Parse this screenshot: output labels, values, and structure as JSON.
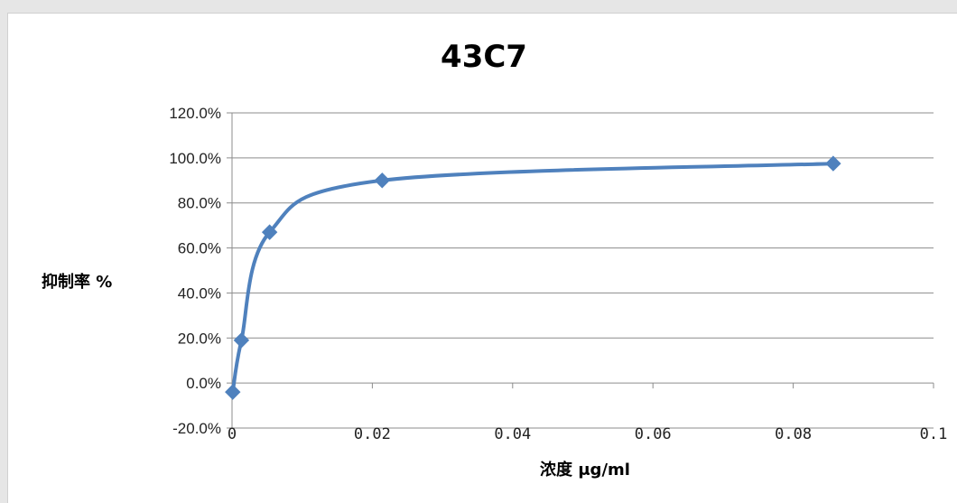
{
  "chart_data": {
    "type": "line",
    "title": "43C7",
    "xlabel": "浓度 μg/ml",
    "ylabel": "抑制率 %",
    "xlim": [
      0,
      0.1
    ],
    "ylim": [
      -0.2,
      1.2
    ],
    "x_ticks": [
      0,
      0.02,
      0.04,
      0.06,
      0.08,
      0.1
    ],
    "x_tick_labels": [
      "0",
      "0.02",
      "0.04",
      "0.06",
      "0.08",
      "0.1"
    ],
    "y_ticks": [
      -0.2,
      0,
      0.2,
      0.4,
      0.6,
      0.8,
      1.0,
      1.2
    ],
    "y_tick_labels": [
      "-20.0%",
      "0.0%",
      "20.0%",
      "40.0%",
      "60.0%",
      "80.0%",
      "100.0%",
      "120.0%"
    ],
    "grid": true,
    "smooth": true,
    "marker": "diamond",
    "color": "#4f81bd",
    "series": [
      {
        "x": [
          0.0001,
          0.00134,
          0.00536,
          0.0214,
          0.0857
        ],
        "y": [
          -0.04,
          0.19,
          0.67,
          0.9,
          0.975
        ]
      }
    ]
  }
}
